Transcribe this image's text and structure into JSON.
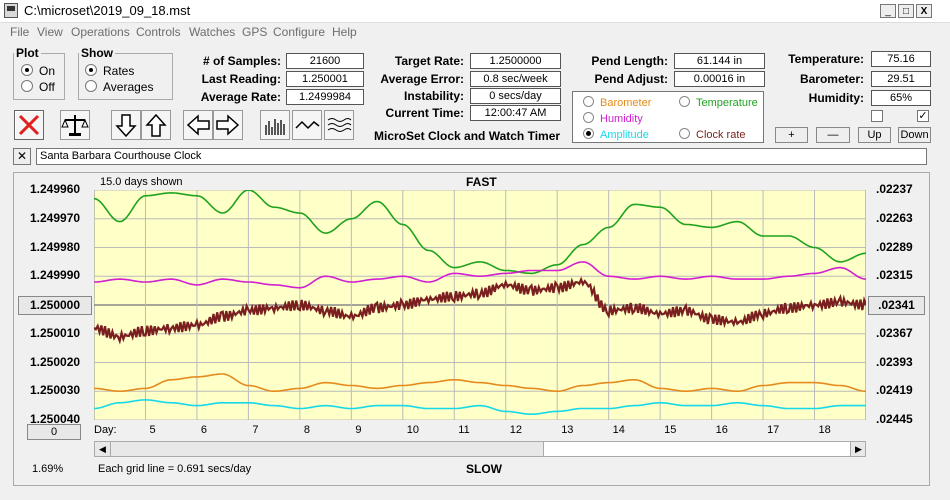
{
  "window": {
    "title": "C:\\microset\\2019_09_18.mst",
    "minimize_label": "_",
    "maximize_label": "□",
    "close_label": "X"
  },
  "menu": [
    "File",
    "View",
    "Operations",
    "Controls",
    "Watches",
    "GPS",
    "Configure",
    "Help"
  ],
  "plot": {
    "legend": "Plot",
    "options": [
      "On",
      "Off"
    ],
    "selected": "On"
  },
  "show": {
    "legend": "Show",
    "options": [
      "Rates",
      "Averages"
    ],
    "selected": "Rates"
  },
  "stats": {
    "num_samples_label": "# of Samples:",
    "num_samples": "21600",
    "last_reading_label": "Last Reading:",
    "last_reading": "1.250001",
    "average_rate_label": "Average Rate:",
    "average_rate": "1.2499984",
    "target_rate_label": "Target Rate:",
    "target_rate": "1.2500000",
    "average_error_label": "Average Error:",
    "average_error": "0.8 sec/week",
    "instability_label": "Instability:",
    "instability": "0 secs/day",
    "current_time_label": "Current Time:",
    "current_time": "12:00:47 AM",
    "pend_length_label": "Pend Length:",
    "pend_length": "61.144 in",
    "pend_adjust_label": "Pend Adjust:",
    "pend_adjust": "0.00016 in",
    "temperature_label": "Temperature:",
    "temperature": "75.16",
    "barometer_label": "Barometer:",
    "barometer": "29.51",
    "humidity_label": "Humidity:",
    "humidity": "65%"
  },
  "timer_caption": "MicroSet Clock and Watch Timer",
  "sensor_options": [
    {
      "label": "Barometer",
      "color": "#e58a1c",
      "selected": false
    },
    {
      "label": "Temperature",
      "color": "#1fa31f",
      "selected": false
    },
    {
      "label": "Humidity",
      "color": "#d21fd2",
      "selected": false
    },
    {
      "label": "Amplitude",
      "color": "#17d8e8",
      "selected": true
    },
    {
      "label": "Clock rate",
      "color": "#7a1f1f",
      "selected": false
    }
  ],
  "adjust_buttons": {
    "plus": "+",
    "minus": "—",
    "up": "Up",
    "down": "Down"
  },
  "clock_name": "Santa Barbara Courthouse Clock",
  "chart_data": {
    "type": "line",
    "days_shown": "15.0 days shown",
    "top_label": "FAST",
    "bottom_label": "SLOW",
    "grid_note": "Each grid line = 0.691 secs/day",
    "percent": "1.69%",
    "center_left": "1.250000",
    "center_right": ".02341",
    "zero_button": "0",
    "day_label": "Day:",
    "days": [
      "5",
      "6",
      "7",
      "8",
      "9",
      "10",
      "11",
      "12",
      "13",
      "14",
      "15",
      "16",
      "17",
      "18"
    ],
    "left_ticks": [
      "1.249960",
      "1.249970",
      "1.249980",
      "1.249990",
      "1.250000",
      "1.250010",
      "1.250020",
      "1.250030",
      "1.250040"
    ],
    "right_ticks": [
      ".02237",
      ".02263",
      ".02289",
      ".02315",
      ".02341",
      ".02367",
      ".02393",
      ".02419",
      ".02445"
    ],
    "x_range": [
      4.0,
      19.0
    ],
    "y_range": [
      1.24996,
      1.25004
    ],
    "y_inverted": true,
    "series": [
      {
        "name": "Temperature",
        "color": "#1fa31f",
        "x": [
          4.0,
          4.5,
          5.0,
          5.5,
          6.0,
          6.5,
          7.0,
          7.5,
          8.0,
          8.5,
          9.0,
          9.5,
          10.0,
          10.5,
          11.0,
          11.5,
          12.0,
          12.5,
          13.0,
          13.5,
          14.0,
          14.5,
          15.0,
          15.5,
          16.0,
          16.5,
          17.0,
          17.5,
          18.0,
          18.5,
          19.0
        ],
        "y": [
          1.249963,
          1.249971,
          1.249962,
          1.249961,
          1.249962,
          1.249968,
          1.24996,
          1.249966,
          1.249968,
          1.249975,
          1.24997,
          1.249964,
          1.249972,
          1.249981,
          1.249987,
          1.249985,
          1.249988,
          1.249989,
          1.249986,
          1.249979,
          1.249973,
          1.249965,
          1.249966,
          1.249972,
          1.249973,
          1.249971,
          1.249976,
          1.249976,
          1.24998,
          1.249985,
          1.249982
        ]
      },
      {
        "name": "Humidity",
        "color": "#d21fd2",
        "x": [
          4.0,
          4.5,
          5.0,
          5.5,
          6.0,
          6.5,
          7.0,
          7.5,
          8.0,
          8.5,
          9.0,
          9.5,
          10.0,
          10.5,
          11.0,
          11.5,
          12.0,
          12.5,
          13.0,
          13.5,
          14.0,
          14.5,
          15.0,
          15.5,
          16.0,
          16.5,
          17.0,
          17.5,
          18.0,
          18.5,
          19.0
        ],
        "y": [
          1.249992,
          1.249991,
          1.249992,
          1.249991,
          1.249993,
          1.249991,
          1.249992,
          1.249993,
          1.249994,
          1.24999,
          1.249992,
          1.249991,
          1.24999,
          1.249992,
          1.249989,
          1.24999,
          1.249989,
          1.249988,
          1.249988,
          1.249985,
          1.24999,
          1.249991,
          1.24999,
          1.249991,
          1.24999,
          1.249991,
          1.249991,
          1.24999,
          1.249989,
          1.249987,
          1.249991
        ]
      },
      {
        "name": "Clock rate",
        "color": "#7a1f1f",
        "x": [
          4.0,
          4.5,
          5.0,
          5.5,
          6.0,
          6.5,
          7.0,
          7.5,
          8.0,
          8.5,
          9.0,
          9.5,
          10.0,
          10.5,
          11.0,
          11.5,
          12.0,
          12.5,
          13.0,
          13.5,
          14.0,
          14.5,
          15.0,
          15.5,
          16.0,
          16.5,
          17.0,
          17.5,
          18.0,
          18.5,
          19.0
        ],
        "y": [
          1.250008,
          1.250011,
          1.250009,
          1.250008,
          1.250007,
          1.250004,
          1.250002,
          1.250001,
          1.25,
          1.250002,
          1.250004,
          1.250001,
          1.25,
          1.249998,
          1.249997,
          1.249996,
          1.249993,
          1.249995,
          1.249994,
          1.249992,
          1.250002,
          1.250001,
          1.250003,
          1.250002,
          1.250005,
          1.250006,
          1.250003,
          1.250001,
          1.25,
          1.249999,
          1.25
        ]
      },
      {
        "name": "Barometer",
        "color": "#e58a1c",
        "x": [
          4.0,
          4.5,
          5.0,
          5.5,
          6.0,
          6.5,
          7.0,
          7.5,
          8.0,
          8.5,
          9.0,
          9.5,
          10.0,
          10.5,
          11.0,
          11.5,
          12.0,
          12.5,
          13.0,
          13.5,
          14.0,
          14.5,
          15.0,
          15.5,
          16.0,
          16.5,
          17.0,
          17.5,
          18.0,
          18.5,
          19.0
        ],
        "y": [
          1.250029,
          1.25003,
          1.250029,
          1.250026,
          1.250025,
          1.250024,
          1.250028,
          1.25003,
          1.250029,
          1.250027,
          1.250028,
          1.250029,
          1.250028,
          1.250027,
          1.250026,
          1.250027,
          1.250028,
          1.250029,
          1.25003,
          1.250028,
          1.250027,
          1.250026,
          1.250029,
          1.25003,
          1.250029,
          1.25003,
          1.250028,
          1.250027,
          1.250027,
          1.250028,
          1.25003
        ]
      },
      {
        "name": "Amplitude",
        "color": "#17d8e8",
        "x": [
          4.0,
          4.5,
          5.0,
          5.5,
          6.0,
          6.5,
          7.0,
          7.5,
          8.0,
          8.5,
          9.0,
          9.5,
          10.0,
          10.5,
          11.0,
          11.5,
          12.0,
          12.5,
          13.0,
          13.5,
          14.0,
          14.5,
          15.0,
          15.5,
          16.0,
          16.5,
          17.0,
          17.5,
          18.0,
          18.5,
          19.0
        ],
        "y": [
          1.250036,
          1.250034,
          1.250033,
          1.250034,
          1.250035,
          1.250034,
          1.250034,
          1.250035,
          1.250036,
          1.250035,
          1.250036,
          1.250035,
          1.250035,
          1.250036,
          1.250036,
          1.250035,
          1.250037,
          1.250038,
          1.250037,
          1.250036,
          1.250036,
          1.250035,
          1.250034,
          1.250035,
          1.250035,
          1.250034,
          1.250035,
          1.250036,
          1.250036,
          1.250035,
          1.250035
        ]
      }
    ]
  }
}
